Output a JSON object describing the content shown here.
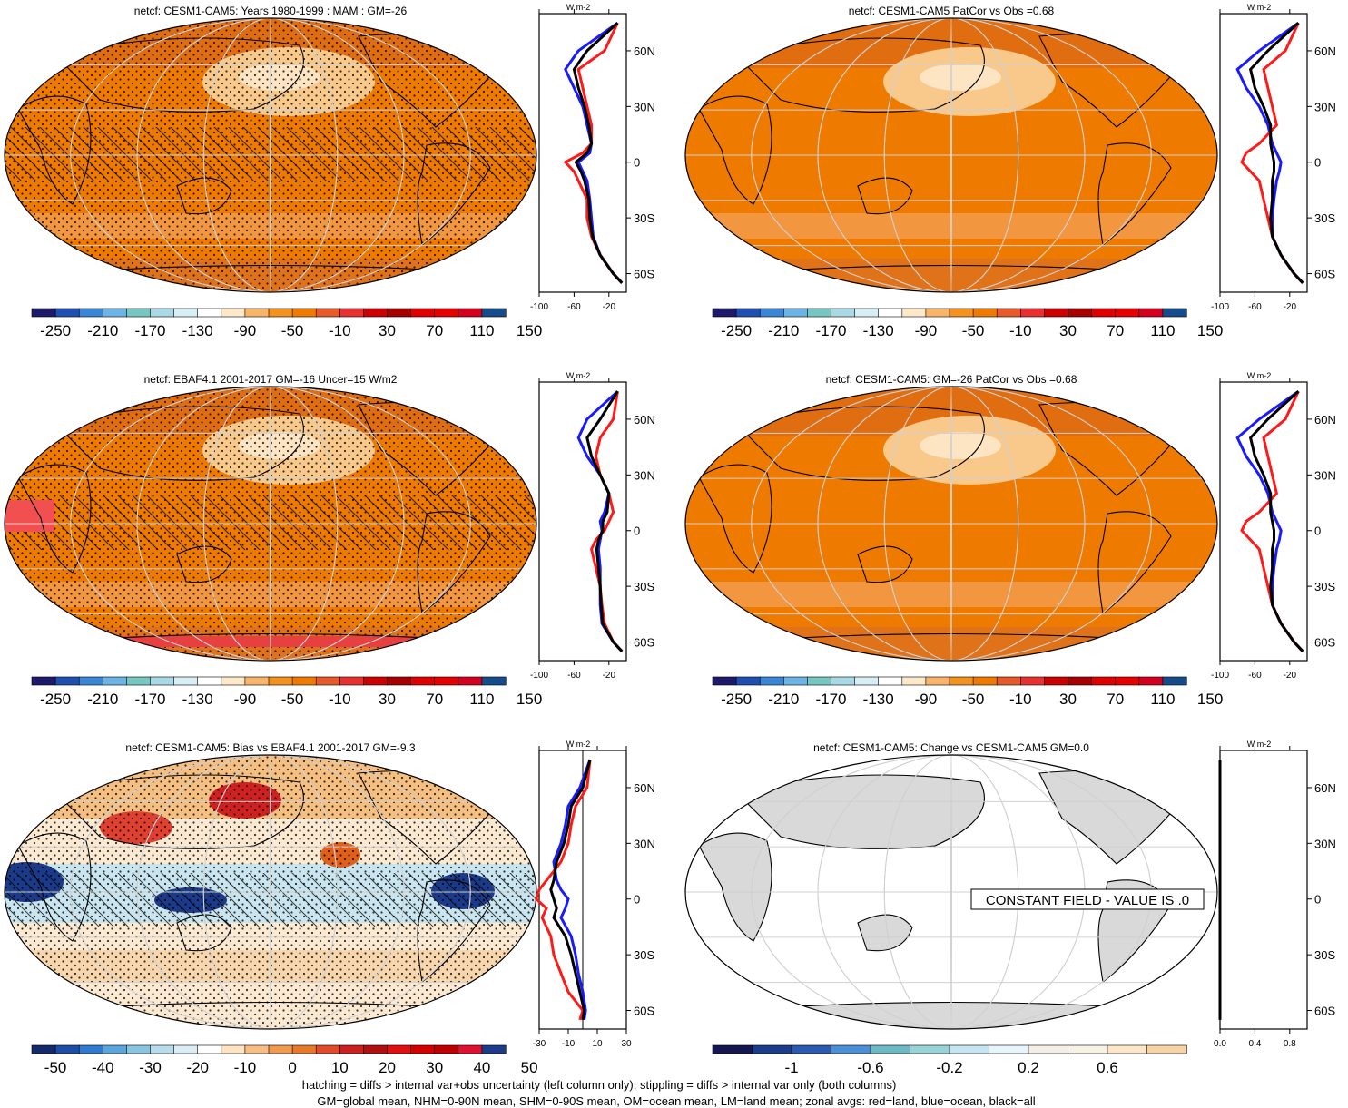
{
  "figure": {
    "footer_line1": "hatching = diffs > internal var+obs uncertainty (left column only); stippling = diffs > internal var only (both columns)",
    "footer_line2": "GM=global mean, NHM=0-90N mean, SHM=0-90S mean, OM=ocean mean, LM=land mean; zonal avgs: red=land, blue=ocean, black=all"
  },
  "colors": {
    "land": "#ff1a1a",
    "ocean": "#1a1aff",
    "all": "#000000",
    "ocean_fill": "#ef7a00"
  },
  "chart_data": [
    {
      "type": "heatmap",
      "title": "netcf: CESM1-CAM5: Years 1980-1999 : MAM : GM=-26",
      "colorbar_labels": [
        "-250",
        "-210",
        "-170",
        "-130",
        "-90",
        "-50",
        "-10",
        "30",
        "70",
        "110",
        "150"
      ],
      "zonal_units": "W m-2",
      "zonal_xticks": [
        "-100",
        "-60",
        "-20"
      ],
      "zonal_yticks": [
        "60N",
        "30N",
        "0",
        "30S",
        "60S"
      ],
      "zonal_lat": [
        75,
        60,
        50,
        40,
        30,
        20,
        10,
        5,
        0,
        -5,
        -10,
        -20,
        -30,
        -40,
        -50,
        -60,
        -65
      ],
      "zonal_land": [
        -10,
        -25,
        -55,
        -50,
        -45,
        -40,
        -40,
        -50,
        -70,
        -60,
        -55,
        -45,
        -45,
        -40,
        -30,
        -15,
        -5
      ],
      "zonal_ocean": [
        -10,
        -55,
        -70,
        -60,
        -50,
        -45,
        -40,
        -42,
        -55,
        -50,
        -45,
        -42,
        -40,
        -38,
        -30,
        -15,
        -5
      ],
      "zonal_all": [
        -10,
        -45,
        -60,
        -55,
        -48,
        -43,
        -40,
        -45,
        -58,
        -52,
        -48,
        -43,
        -42,
        -39,
        -30,
        -15,
        -5
      ]
    },
    {
      "type": "heatmap",
      "title": "netcf: CESM1-CAM5 PatCor vs Obs =0.68",
      "colorbar_labels": [
        "-250",
        "-210",
        "-170",
        "-130",
        "-90",
        "-50",
        "-10",
        "30",
        "70",
        "110",
        "150"
      ],
      "zonal_units": "W m-2",
      "zonal_xticks": [
        "-100",
        "-60",
        "-20"
      ],
      "zonal_yticks": [
        "60N",
        "30N",
        "0",
        "30S",
        "60S"
      ],
      "zonal_lat": [
        75,
        60,
        50,
        40,
        30,
        20,
        10,
        5,
        0,
        -5,
        -10,
        -20,
        -30,
        -40,
        -50,
        -60,
        -65
      ],
      "zonal_land": [
        -10,
        -25,
        -50,
        -45,
        -40,
        -35,
        -55,
        -70,
        -75,
        -65,
        -55,
        -50,
        -45,
        -40,
        -30,
        -15,
        -5
      ],
      "zonal_ocean": [
        -10,
        -55,
        -80,
        -70,
        -55,
        -45,
        -40,
        -35,
        -30,
        -32,
        -35,
        -38,
        -40,
        -40,
        -30,
        -15,
        -5
      ],
      "zonal_all": [
        -10,
        -45,
        -65,
        -60,
        -50,
        -42,
        -42,
        -40,
        -38,
        -38,
        -40,
        -40,
        -42,
        -40,
        -30,
        -15,
        -5
      ]
    },
    {
      "type": "heatmap",
      "title": "netcf: EBAF4.1 2001-2017 GM=-16 Uncer=15 W/m2",
      "colorbar_labels": [
        "-250",
        "-210",
        "-170",
        "-130",
        "-90",
        "-50",
        "-10",
        "30",
        "70",
        "110",
        "150"
      ],
      "zonal_units": "W m-2",
      "zonal_xticks": [
        "-100",
        "-60",
        "-20"
      ],
      "zonal_yticks": [
        "60N",
        "30N",
        "0",
        "30S",
        "60S"
      ],
      "zonal_lat": [
        75,
        60,
        50,
        40,
        30,
        20,
        10,
        5,
        0,
        -5,
        -10,
        -20,
        -30,
        -40,
        -50,
        -60,
        -65
      ],
      "zonal_land": [
        -10,
        -15,
        -30,
        -35,
        -30,
        -20,
        -15,
        -20,
        -25,
        -35,
        -40,
        -35,
        -30,
        -28,
        -25,
        -15,
        -5
      ],
      "zonal_ocean": [
        -10,
        -45,
        -55,
        -45,
        -30,
        -20,
        -25,
        -30,
        -28,
        -30,
        -32,
        -30,
        -30,
        -30,
        -28,
        -15,
        -5
      ],
      "zonal_all": [
        -10,
        -30,
        -45,
        -40,
        -30,
        -20,
        -22,
        -27,
        -27,
        -32,
        -34,
        -32,
        -30,
        -29,
        -27,
        -15,
        -5
      ]
    },
    {
      "type": "heatmap",
      "title": "netcf: CESM1-CAM5: GM=-26 PatCor vs Obs =0.68",
      "colorbar_labels": [
        "-250",
        "-210",
        "-170",
        "-130",
        "-90",
        "-50",
        "-10",
        "30",
        "70",
        "110",
        "150"
      ],
      "zonal_units": "W m-2",
      "zonal_xticks": [
        "-100",
        "-60",
        "-20"
      ],
      "zonal_yticks": [
        "60N",
        "30N",
        "0",
        "30S",
        "60S"
      ],
      "zonal_lat": [
        75,
        60,
        50,
        40,
        30,
        20,
        10,
        5,
        0,
        -5,
        -10,
        -20,
        -30,
        -40,
        -50,
        -60,
        -65
      ],
      "zonal_land": [
        -10,
        -25,
        -50,
        -45,
        -40,
        -35,
        -55,
        -70,
        -75,
        -65,
        -55,
        -50,
        -45,
        -40,
        -30,
        -15,
        -5
      ],
      "zonal_ocean": [
        -10,
        -55,
        -80,
        -70,
        -55,
        -45,
        -40,
        -35,
        -30,
        -32,
        -35,
        -38,
        -40,
        -40,
        -30,
        -15,
        -5
      ],
      "zonal_all": [
        -10,
        -45,
        -65,
        -60,
        -50,
        -42,
        -42,
        -40,
        -38,
        -38,
        -40,
        -40,
        -42,
        -40,
        -30,
        -15,
        -5
      ]
    },
    {
      "type": "heatmap",
      "title": "netcf: CESM1-CAM5: Bias vs EBAF4.1 2001-2017 GM=-9.3",
      "colorbar_labels": [
        "-50",
        "-40",
        "-30",
        "-20",
        "-10",
        "0",
        "10",
        "20",
        "30",
        "40",
        "50"
      ],
      "zonal_units": "W m-2",
      "zonal_xticks": [
        "-30",
        "-10",
        "10",
        "30"
      ],
      "zonal_yticks": [
        "60N",
        "30N",
        "0",
        "30S",
        "60S"
      ],
      "zonal_lat": [
        75,
        60,
        50,
        40,
        30,
        20,
        10,
        5,
        0,
        -5,
        -10,
        -20,
        -30,
        -40,
        -50,
        -60,
        -65
      ],
      "zonal_land": [
        5,
        3,
        -5,
        -8,
        -10,
        -15,
        -25,
        -30,
        -32,
        -25,
        -28,
        -22,
        -20,
        -15,
        -10,
        0,
        -2
      ],
      "zonal_ocean": [
        5,
        -2,
        -10,
        -12,
        -15,
        -20,
        -18,
        -15,
        -10,
        -12,
        -15,
        -8,
        -5,
        -3,
        0,
        2,
        1
      ],
      "zonal_all": [
        5,
        0,
        -8,
        -10,
        -13,
        -18,
        -20,
        -22,
        -20,
        -18,
        -20,
        -12,
        -8,
        -5,
        -2,
        1,
        0
      ]
    },
    {
      "type": "heatmap",
      "title": "netcf: CESM1-CAM5: Change vs CESM1-CAM5 GM=0.0",
      "annotation": "CONSTANT FIELD - VALUE IS .0",
      "colorbar_labels": [
        "-1",
        "-0.6",
        "-0.2",
        "0.2",
        "0.6"
      ],
      "zonal_units": "W m-2",
      "zonal_xticks": [
        "0.0",
        "0.4",
        "0.8"
      ],
      "zonal_yticks": [
        "60N",
        "30N",
        "0",
        "30S",
        "60S"
      ],
      "zonal_lat": [
        75,
        -65
      ],
      "zonal_land": [
        0,
        0
      ],
      "zonal_ocean": [
        0,
        0
      ],
      "zonal_all": [
        0,
        0
      ]
    }
  ]
}
